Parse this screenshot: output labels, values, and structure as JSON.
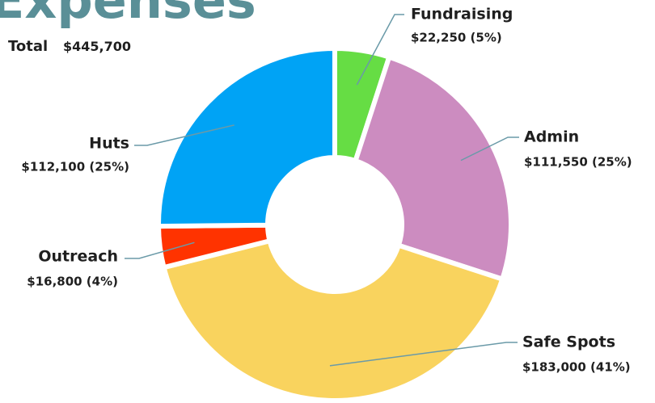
{
  "chart_data": {
    "type": "donut",
    "title": "Expenses",
    "total_title": "Total",
    "total": 445700,
    "total_label": "$445,700",
    "categories": [
      "Fundraising",
      "Admin",
      "Safe Spots",
      "Outreach",
      "Huts"
    ],
    "values": [
      22250,
      111550,
      183000,
      16800,
      112100
    ],
    "value_labels": [
      "$22,250 (5%)",
      "$111,550 (25%)",
      "$183,000 (41%)",
      "$16,800 (4%)",
      "$112,100 (25%)"
    ],
    "colors": [
      "#66dd44",
      "#cc8cc0",
      "#f9d35e",
      "#ff3300",
      "#00a3f5"
    ]
  }
}
